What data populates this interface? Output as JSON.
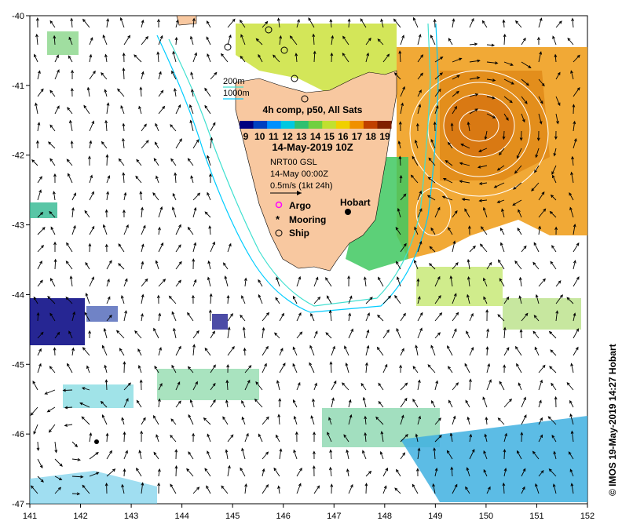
{
  "map": {
    "lon_ticks": [
      "141",
      "142",
      "143",
      "144",
      "145",
      "146",
      "147",
      "148",
      "149",
      "150",
      "151",
      "152"
    ],
    "lat_ticks": [
      "-40",
      "-41",
      "-42",
      "-43",
      "-44",
      "-45",
      "-46",
      "-47"
    ],
    "lon_range": [
      141,
      152
    ],
    "lat_range": [
      -47,
      -40
    ]
  },
  "isobaths": {
    "shallow": "200m",
    "deep": "1000m",
    "shallow_color": "#40e0d0",
    "deep_color": "#00ccff"
  },
  "colorbar": {
    "title": "4h comp, p50, All Sats",
    "ticks": [
      "9",
      "10",
      "11",
      "12",
      "13",
      "14",
      "15",
      "16",
      "17",
      "18",
      "19"
    ],
    "colors": [
      "#000080",
      "#0040c0",
      "#0090ff",
      "#00c8e0",
      "#30c070",
      "#70d040",
      "#c0e030",
      "#f0d000",
      "#f09000",
      "#c04000",
      "#802000"
    ]
  },
  "date_label": "14-May-2019 10Z",
  "product": {
    "line1": "NRT00 GSL",
    "line2": "14-May 00:00Z",
    "scale": "0.5m/s (1kt 24h)"
  },
  "markers": {
    "argo": "Argo",
    "mooring": "Mooring",
    "ship": "Ship",
    "argo_color": "#ff00ff"
  },
  "places": {
    "hobart": "Hobart"
  },
  "credit": "© IMOS 19-May-2019 14:27 Hobart",
  "colors": {
    "land": "#f8c8a0",
    "warm_water": "#f0a020",
    "cool_water": "#60c8e8"
  }
}
